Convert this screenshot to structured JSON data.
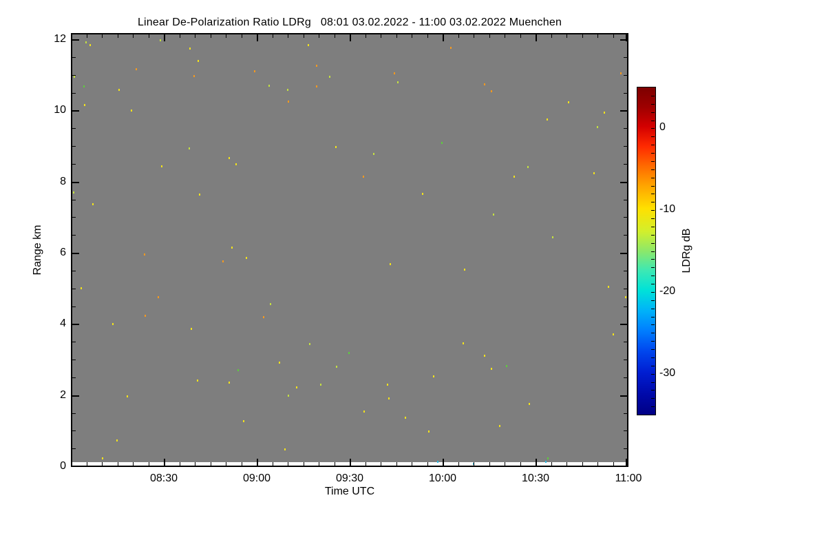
{
  "chart_data": {
    "type": "scatter",
    "title": "Linear De-Polarization Ratio LDRg   08:01 03.02.2022 - 11:00 03.02.2022 Muenchen",
    "xlabel": "Time UTC",
    "ylabel": "Range km",
    "gridlines": false,
    "plot_background_color": "#7e7e7e",
    "x_axis": {
      "range": [
        "08:00",
        "11:00"
      ],
      "tick_labels": [
        "08:30",
        "09:00",
        "09:30",
        "10:00",
        "10:30",
        "11:00"
      ],
      "minor_step_minutes": 5
    },
    "y_axis": {
      "min": 0,
      "max": 12,
      "major_ticks": [
        0,
        2,
        4,
        6,
        8,
        10,
        12
      ],
      "minor_step_km": 0.5
    },
    "colorbar": {
      "label": "LDRg dB",
      "vmax": 5,
      "vmin": -35,
      "tick_values": [
        0,
        -10,
        -20,
        -30
      ],
      "minor_step_db": 1,
      "gradient": [
        [
          0,
          "#7d0000"
        ],
        [
          6,
          "#9e0000"
        ],
        [
          12,
          "#d40000"
        ],
        [
          18,
          "#ff2a00"
        ],
        [
          24,
          "#ff6a00"
        ],
        [
          30,
          "#ffa400"
        ],
        [
          37,
          "#ffe000"
        ],
        [
          44,
          "#d2ef2c"
        ],
        [
          50,
          "#8ce86a"
        ],
        [
          56,
          "#3ce8b4"
        ],
        [
          62,
          "#00e2d8"
        ],
        [
          68,
          "#00b4f8"
        ],
        [
          74,
          "#0081ff"
        ],
        [
          80,
          "#004bf0"
        ],
        [
          87,
          "#001ed2"
        ],
        [
          94,
          "#0009a8"
        ],
        [
          100,
          "#000085"
        ]
      ]
    },
    "point_colors": {
      "y": "#f2e21c",
      "o": "#f5991f",
      "gy": "#c3e042",
      "g": "#5ecb3e",
      "c": "#2fb9e0"
    },
    "points_format": "[minutes_after_08:00_UTC, range_km, color_key]",
    "points": [
      [
        4.4,
        11.94,
        "gy"
      ],
      [
        5.8,
        11.86,
        "y"
      ],
      [
        28.4,
        12.0,
        "gy"
      ],
      [
        38.0,
        11.77,
        "y"
      ],
      [
        40.7,
        11.42,
        "y"
      ],
      [
        20.7,
        11.19,
        "o"
      ],
      [
        39.3,
        10.99,
        "o"
      ],
      [
        58.9,
        11.13,
        "o"
      ],
      [
        76.2,
        11.86,
        "y"
      ],
      [
        78.9,
        11.28,
        "o"
      ],
      [
        83.1,
        10.97,
        "gy"
      ],
      [
        0.7,
        10.97,
        "gy"
      ],
      [
        3.8,
        10.7,
        "g"
      ],
      [
        15.1,
        10.61,
        "y"
      ],
      [
        63.6,
        10.72,
        "gy"
      ],
      [
        69.6,
        10.61,
        "gy"
      ],
      [
        78.9,
        10.7,
        "o"
      ],
      [
        4.0,
        10.18,
        "y"
      ],
      [
        19.1,
        10.03,
        "y"
      ],
      [
        69.8,
        10.28,
        "o"
      ],
      [
        0.4,
        7.72,
        "gy"
      ],
      [
        6.7,
        7.39,
        "y"
      ],
      [
        37.8,
        8.96,
        "gy"
      ],
      [
        85.1,
        9.0,
        "y"
      ],
      [
        50.7,
        8.69,
        "y"
      ],
      [
        52.9,
        8.51,
        "y"
      ],
      [
        28.9,
        8.46,
        "y"
      ],
      [
        41.1,
        7.66,
        "y"
      ],
      [
        51.6,
        6.17,
        "y"
      ],
      [
        122.2,
        11.79,
        "o"
      ],
      [
        104.0,
        11.07,
        "o"
      ],
      [
        105.1,
        10.82,
        "gy"
      ],
      [
        133.1,
        10.76,
        "o"
      ],
      [
        135.3,
        10.57,
        "o"
      ],
      [
        177.1,
        11.07,
        "o"
      ],
      [
        160.2,
        10.26,
        "y"
      ],
      [
        171.8,
        9.97,
        "y"
      ],
      [
        153.3,
        9.77,
        "y"
      ],
      [
        169.6,
        9.56,
        "gy"
      ],
      [
        119.3,
        9.12,
        "g"
      ],
      [
        97.3,
        8.81,
        "gy"
      ],
      [
        147.1,
        8.44,
        "gy"
      ],
      [
        168.4,
        8.26,
        "y"
      ],
      [
        94.0,
        8.17,
        "o"
      ],
      [
        142.7,
        8.17,
        "y"
      ],
      [
        113.1,
        7.68,
        "y"
      ],
      [
        136.0,
        7.1,
        "gy"
      ],
      [
        155.1,
        6.46,
        "gy"
      ],
      [
        23.3,
        5.98,
        "o"
      ],
      [
        48.7,
        5.79,
        "o"
      ],
      [
        56.2,
        5.88,
        "y"
      ],
      [
        2.9,
        5.03,
        "y"
      ],
      [
        27.8,
        4.78,
        "o"
      ],
      [
        64.0,
        4.59,
        "gy"
      ],
      [
        23.6,
        4.26,
        "o"
      ],
      [
        61.8,
        4.22,
        "o"
      ],
      [
        13.1,
        4.03,
        "y"
      ],
      [
        38.4,
        3.89,
        "y"
      ],
      [
        76.7,
        3.46,
        "gy"
      ],
      [
        89.3,
        3.21,
        "g"
      ],
      [
        66.9,
        2.94,
        "y"
      ],
      [
        85.3,
        2.83,
        "gy"
      ],
      [
        53.6,
        2.73,
        "g"
      ],
      [
        40.4,
        2.44,
        "y"
      ],
      [
        50.7,
        2.38,
        "y"
      ],
      [
        72.4,
        2.25,
        "y"
      ],
      [
        80.2,
        2.32,
        "gy"
      ],
      [
        69.8,
        2.01,
        "gy"
      ],
      [
        17.8,
        1.99,
        "y"
      ],
      [
        55.3,
        1.3,
        "y"
      ],
      [
        14.4,
        0.75,
        "y"
      ],
      [
        68.7,
        0.5,
        "y"
      ],
      [
        9.8,
        0.25,
        "y"
      ],
      [
        102.7,
        5.71,
        "y"
      ],
      [
        126.7,
        5.55,
        "y"
      ],
      [
        173.1,
        5.07,
        "y"
      ],
      [
        178.7,
        4.78,
        "y"
      ],
      [
        174.7,
        3.74,
        "y"
      ],
      [
        126.2,
        3.48,
        "y"
      ],
      [
        133.1,
        3.14,
        "y"
      ],
      [
        140.2,
        2.85,
        "g"
      ],
      [
        135.3,
        2.77,
        "y"
      ],
      [
        116.7,
        2.55,
        "y"
      ],
      [
        101.8,
        2.32,
        "y"
      ],
      [
        102.2,
        1.94,
        "y"
      ],
      [
        147.6,
        1.78,
        "y"
      ],
      [
        94.2,
        1.57,
        "y"
      ],
      [
        107.6,
        1.39,
        "y"
      ],
      [
        138.0,
        1.16,
        "y"
      ],
      [
        115.1,
        1.01,
        "y"
      ],
      [
        118.0,
        0.15,
        "c"
      ],
      [
        129.6,
        0.1,
        "c"
      ],
      [
        152.9,
        0.15,
        "c"
      ],
      [
        153.6,
        0.25,
        "g"
      ]
    ]
  }
}
